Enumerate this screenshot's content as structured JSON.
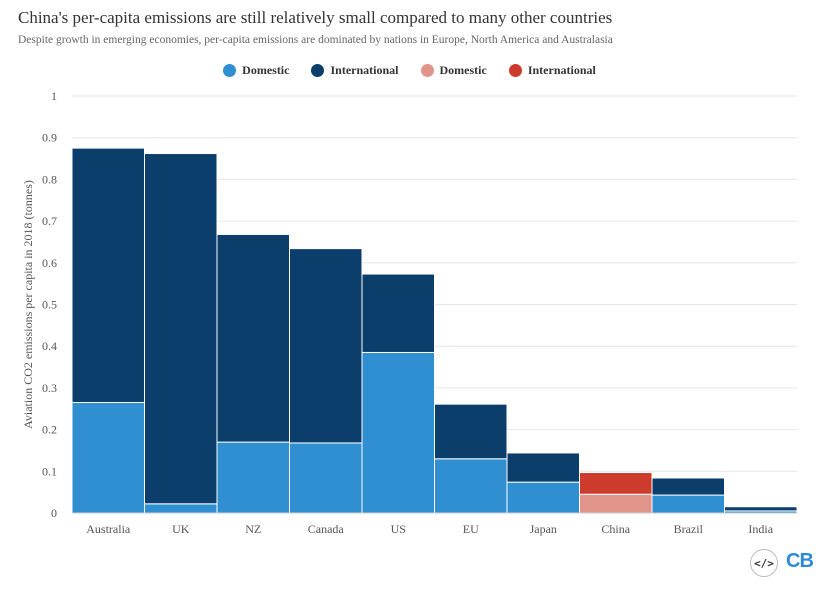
{
  "header": {
    "title": "China's per-capita emissions are still relatively small compared to many other countries",
    "subtitle": "Despite growth in emerging economies, per-capita emissions are dominated by nations in Europe, North America and Australasia"
  },
  "legend": [
    {
      "label": "Domestic",
      "color": "#2f8fd1"
    },
    {
      "label": "International",
      "color": "#0b3e6b"
    },
    {
      "label": "Domestic",
      "color": "#e0948a"
    },
    {
      "label": "International",
      "color": "#cc3b2b"
    }
  ],
  "colors": {
    "domestic": "#2f8fd1",
    "international": "#0b3e6b",
    "china_domestic": "#e0948a",
    "china_international": "#cc3b2b",
    "grid": "#e6e6e6"
  },
  "branding": {
    "embed_icon": "embed-code-icon",
    "embed_glyph": "</>",
    "logo_text": "CB"
  },
  "chart_data": {
    "type": "bar",
    "stacked": true,
    "categories": [
      "Australia",
      "UK",
      "NZ",
      "Canada",
      "US",
      "EU",
      "Japan",
      "China",
      "Brazil",
      "India"
    ],
    "series": [
      {
        "name": "Domestic",
        "values": [
          0.265,
          0.022,
          0.17,
          0.168,
          0.385,
          0.13,
          0.074,
          0.045,
          0.043,
          0.005
        ]
      },
      {
        "name": "International",
        "values": [
          0.61,
          0.84,
          0.498,
          0.466,
          0.188,
          0.131,
          0.07,
          0.052,
          0.041,
          0.01
        ]
      }
    ],
    "highlight_category": "China",
    "ylabel": "Aviation CO2 emissions per capita in 2018 (tonnes)",
    "xlabel": "",
    "ylim": [
      0,
      1
    ],
    "yticks": [
      "0",
      "0.1",
      "0.2",
      "0.3",
      "0.4",
      "0.5",
      "0.6",
      "0.7",
      "0.8",
      "0.9",
      "1"
    ],
    "grid": true
  }
}
